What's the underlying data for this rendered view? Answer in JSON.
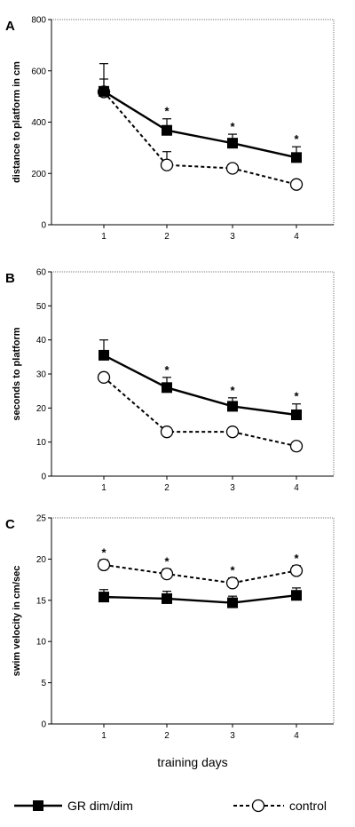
{
  "chart_data": [
    {
      "type": "line",
      "panel_label": "A",
      "ylabel": "distance to platform in cm",
      "categories": [
        "1",
        "2",
        "3",
        "4"
      ],
      "ylim": [
        0,
        800
      ],
      "yticks": [
        "0",
        "200",
        "400",
        "600",
        "800"
      ],
      "series": [
        {
          "name": "GR dim/dim",
          "values": [
            520,
            368,
            318,
            262
          ],
          "errors": [
            48,
            45,
            35,
            42
          ],
          "marker": "filled-square",
          "line": "solid"
        },
        {
          "name": "control",
          "values": [
            518,
            233,
            220,
            157
          ],
          "errors": [
            110,
            52,
            0,
            0
          ],
          "marker": "open-circle",
          "line": "dashed"
        }
      ],
      "annotations": [
        {
          "x": "2",
          "text": "*"
        },
        {
          "x": "3",
          "text": "*"
        },
        {
          "x": "4",
          "text": "*"
        }
      ]
    },
    {
      "type": "line",
      "panel_label": "B",
      "ylabel": "seconds to platform",
      "categories": [
        "1",
        "2",
        "3",
        "4"
      ],
      "ylim": [
        0,
        60
      ],
      "yticks": [
        "0",
        "10",
        "20",
        "30",
        "40",
        "50",
        "60"
      ],
      "series": [
        {
          "name": "GR dim/dim",
          "values": [
            35.5,
            26,
            20.5,
            18
          ],
          "errors": [
            4.5,
            3,
            2.5,
            3.2
          ],
          "marker": "filled-square",
          "line": "solid"
        },
        {
          "name": "control",
          "values": [
            29,
            13,
            13,
            8.8
          ],
          "errors": [
            0,
            0,
            0,
            0
          ],
          "marker": "open-circle",
          "line": "dashed"
        }
      ],
      "annotations": [
        {
          "x": "2",
          "text": "*"
        },
        {
          "x": "3",
          "text": "*"
        },
        {
          "x": "4",
          "text": "*"
        }
      ]
    },
    {
      "type": "line",
      "panel_label": "C",
      "ylabel": "swim velocity in cm/sec",
      "xlabel": "training days",
      "categories": [
        "1",
        "2",
        "3",
        "4"
      ],
      "ylim": [
        0,
        25
      ],
      "yticks": [
        "0",
        "5",
        "10",
        "15",
        "20",
        "25"
      ],
      "series": [
        {
          "name": "GR dim/dim",
          "values": [
            15.4,
            15.2,
            14.7,
            15.6
          ],
          "errors": [
            0.9,
            0.9,
            0.8,
            0.9
          ],
          "marker": "filled-square",
          "line": "solid"
        },
        {
          "name": "control",
          "values": [
            19.3,
            18.2,
            17.1,
            18.6
          ],
          "errors": [
            0.6,
            0.6,
            0.6,
            0.6
          ],
          "marker": "open-circle",
          "line": "dashed"
        }
      ],
      "annotations": [
        {
          "x": "1",
          "text": "*"
        },
        {
          "x": "2",
          "text": "*"
        },
        {
          "x": "3",
          "text": "*"
        },
        {
          "x": "4",
          "text": "*"
        }
      ]
    }
  ],
  "legend": {
    "items": [
      {
        "label": "GR dim/dim",
        "marker": "filled-square",
        "line": "solid"
      },
      {
        "label": "control",
        "marker": "open-circle",
        "line": "dashed"
      }
    ]
  }
}
